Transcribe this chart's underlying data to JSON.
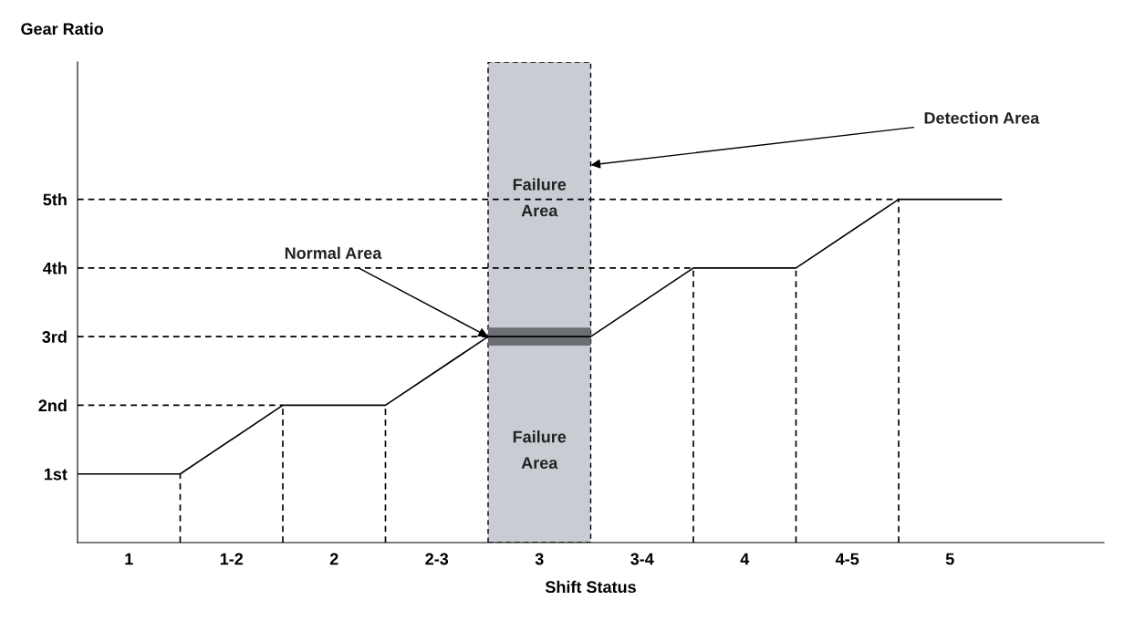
{
  "chart_data": {
    "type": "line",
    "xlabel": "Shift Status",
    "ylabel": "Gear Ratio",
    "xlim": [
      0.75,
      5.75
    ],
    "ylim": [
      0,
      7
    ],
    "xticks": [
      1,
      {
        "value": 1.5,
        "label": "1-2"
      },
      2,
      {
        "value": 2.5,
        "label": "2-3"
      },
      3,
      {
        "value": 3.5,
        "label": "3-4"
      },
      4,
      {
        "value": 4.5,
        "label": "4-5"
      },
      5
    ],
    "yticks": [
      {
        "value": 1,
        "label": "1st"
      },
      {
        "value": 2,
        "label": "2nd"
      },
      {
        "value": 3,
        "label": "3rd"
      },
      {
        "value": 4,
        "label": "4th"
      },
      {
        "value": 5,
        "label": "5th"
      }
    ],
    "bands": [
      {
        "axis": "x",
        "from": 2.75,
        "to": 3.25,
        "color": "#c9cdd3"
      }
    ],
    "series": [
      {
        "color": "#000000",
        "x": [
          0.75,
          1.25,
          1.75,
          2.25,
          2.75,
          3.25,
          3.75,
          4.25,
          4.75,
          5.25
        ],
        "values": [
          1,
          1,
          2,
          2,
          3,
          3,
          4,
          4,
          5,
          5
        ]
      },
      {
        "type": "bar",
        "color": "#6b6e73",
        "x": [
          3
        ],
        "values": [
          0.26
        ],
        "base": [
          2.87
        ]
      },
      {
        "color": "#000000",
        "line_style": "dashed",
        "x": [
          0.75,
          4.75
        ],
        "values": [
          5,
          5
        ]
      },
      {
        "color": "#000000",
        "line_style": "dashed",
        "x": [
          0.75,
          3.75
        ],
        "values": [
          4,
          4
        ]
      },
      {
        "color": "#000000",
        "line_style": "dashed",
        "x": [
          0.75,
          2.75
        ],
        "values": [
          3,
          3
        ]
      },
      {
        "color": "#000000",
        "line_style": "dashed",
        "x": [
          0.75,
          1.75
        ],
        "values": [
          2,
          2
        ]
      },
      {
        "color": "#000000",
        "line_style": "dashed",
        "x": [
          1.25,
          1.25
        ],
        "values": [
          0,
          1
        ]
      },
      {
        "color": "#000000",
        "line_style": "dashed",
        "x": [
          1.75,
          1.75
        ],
        "values": [
          0,
          2
        ]
      },
      {
        "color": "#000000",
        "line_style": "dashed",
        "x": [
          2.25,
          2.25
        ],
        "values": [
          0,
          2
        ]
      },
      {
        "color": "#000000",
        "line_style": "dashed",
        "x": [
          3.75,
          3.75
        ],
        "values": [
          0,
          4
        ]
      },
      {
        "color": "#000000",
        "line_style": "dashed",
        "x": [
          4.25,
          4.25
        ],
        "values": [
          0,
          4
        ]
      },
      {
        "color": "#000000",
        "line_style": "dashed",
        "x": [
          4.75,
          4.75
        ],
        "values": [
          0,
          5
        ]
      }
    ],
    "annotations": [
      "Failure\nArea",
      "Failure\nArea",
      {
        "text": "Normal Area",
        "x": 2.75,
        "y": 3
      },
      {
        "text": "Detection Area",
        "x": 3.25,
        "y": 5.5
      }
    ],
    "legend": false,
    "grid": false
  }
}
